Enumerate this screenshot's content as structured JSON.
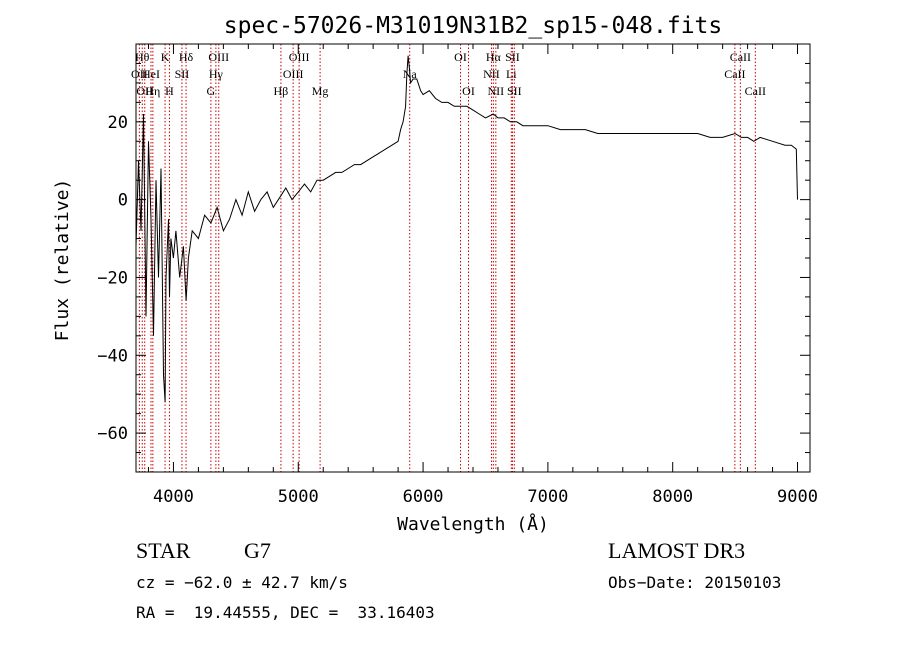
{
  "chart_data": {
    "type": "line",
    "title": "spec-57026-M31019N31B2_sp15-048.fits",
    "xlabel": "Wavelength (Å)",
    "ylabel": "Flux (relative)",
    "xlim": [
      3700,
      9100
    ],
    "ylim": [
      -70,
      40
    ],
    "xticks": [
      4000,
      5000,
      6000,
      7000,
      8000,
      9000
    ],
    "xtick_labels": [
      "4000",
      "5000",
      "6000",
      "7000",
      "8000",
      "9000"
    ],
    "yticks": [
      -60,
      -40,
      -20,
      0,
      20
    ],
    "ytick_labels": [
      "−60",
      "−40",
      "−20",
      "0",
      "20"
    ],
    "grid": false,
    "series": [
      {
        "name": "flux",
        "x": [
          3700,
          3720,
          3740,
          3760,
          3780,
          3800,
          3820,
          3840,
          3860,
          3880,
          3900,
          3920,
          3933,
          3940,
          3960,
          3968,
          3980,
          4000,
          4020,
          4050,
          4080,
          4101,
          4120,
          4150,
          4200,
          4250,
          4300,
          4350,
          4400,
          4450,
          4500,
          4550,
          4600,
          4650,
          4700,
          4750,
          4800,
          4861,
          4900,
          4950,
          5000,
          5050,
          5100,
          5150,
          5200,
          5250,
          5300,
          5350,
          5400,
          5450,
          5500,
          5550,
          5600,
          5650,
          5700,
          5750,
          5800,
          5820,
          5840,
          5860,
          5870,
          5880,
          5890,
          5900,
          5920,
          5950,
          5980,
          6000,
          6050,
          6100,
          6150,
          6200,
          6250,
          6300,
          6350,
          6400,
          6450,
          6500,
          6563,
          6600,
          6650,
          6700,
          6750,
          6800,
          6900,
          7000,
          7100,
          7200,
          7300,
          7400,
          7500,
          7600,
          7700,
          7800,
          7900,
          8000,
          8100,
          8200,
          8300,
          8400,
          8500,
          8550,
          8600,
          8650,
          8700,
          8800,
          8900,
          8950,
          8990,
          9000
        ],
        "values": [
          -12,
          10,
          -8,
          22,
          -30,
          15,
          -5,
          -35,
          5,
          -20,
          8,
          -45,
          -52,
          -20,
          -5,
          -25,
          -10,
          -15,
          -8,
          -20,
          -12,
          -26,
          -15,
          -8,
          -10,
          -4,
          -6,
          -2,
          -8,
          -5,
          0,
          -4,
          2,
          -3,
          0,
          2,
          -2,
          1,
          3,
          0,
          2,
          4,
          2,
          5,
          5,
          6,
          7,
          7,
          8,
          9,
          9,
          10,
          11,
          12,
          13,
          14,
          15,
          18,
          20,
          24,
          32,
          37,
          34,
          30,
          31,
          31,
          28,
          27,
          28,
          26,
          25,
          25,
          24,
          24,
          24,
          23,
          22,
          21,
          22,
          21,
          21,
          20,
          20,
          19,
          19,
          19,
          18,
          18,
          18,
          17,
          17,
          17,
          17,
          17,
          17,
          17,
          17,
          17,
          16,
          16,
          17,
          16,
          16,
          15,
          16,
          15,
          14,
          14,
          13,
          0
        ]
      }
    ],
    "lines": [
      {
        "x": 3727,
        "row": 1,
        "label": "OII"
      },
      {
        "x": 3750,
        "row": 0,
        "label": "Hθ"
      },
      {
        "x": 3770,
        "row": 2,
        "label": "OII"
      },
      {
        "x": 3820,
        "row": 1,
        "label": "HeI"
      },
      {
        "x": 3835,
        "row": 2,
        "label": "Hη"
      },
      {
        "x": 3933,
        "row": 0,
        "label": "K"
      },
      {
        "x": 3968,
        "row": 2,
        "label": "H"
      },
      {
        "x": 4068,
        "row": 1,
        "label": "SII"
      },
      {
        "x": 4101,
        "row": 0,
        "label": "Hδ"
      },
      {
        "x": 4300,
        "row": 2,
        "label": "G"
      },
      {
        "x": 4340,
        "row": 1,
        "label": "Hγ"
      },
      {
        "x": 4363,
        "row": 0,
        "label": "OIII"
      },
      {
        "x": 4861,
        "row": 2,
        "label": "Hβ"
      },
      {
        "x": 4959,
        "row": 1,
        "label": "OIII"
      },
      {
        "x": 5007,
        "row": 0,
        "label": "OIII"
      },
      {
        "x": 5175,
        "row": 2,
        "label": "Mg"
      },
      {
        "x": 5893,
        "row": 1,
        "label": "Na"
      },
      {
        "x": 6300,
        "row": 0,
        "label": "OI"
      },
      {
        "x": 6364,
        "row": 2,
        "label": "OI"
      },
      {
        "x": 6548,
        "row": 1,
        "label": "NII"
      },
      {
        "x": 6563,
        "row": 0,
        "label": "Hα"
      },
      {
        "x": 6583,
        "row": 2,
        "label": "NII"
      },
      {
        "x": 6707,
        "row": 1,
        "label": "Li"
      },
      {
        "x": 6716,
        "row": 0,
        "label": "SII"
      },
      {
        "x": 6731,
        "row": 2,
        "label": "SII"
      },
      {
        "x": 8498,
        "row": 1,
        "label": "CaII"
      },
      {
        "x": 8542,
        "row": 0,
        "label": "CaII"
      },
      {
        "x": 8662,
        "row": 2,
        "label": "CaII"
      }
    ]
  },
  "info": {
    "object_class": "STAR",
    "subclass": "G7",
    "survey": "LAMOST DR3",
    "cz": "cz = −62.0 ± 42.7 km/s",
    "obs_date": "Obs−Date: 20150103",
    "coords": "RA =  19.44555, DEC =  33.16403"
  },
  "colors": {
    "line": "#000000",
    "marker": "#cc0000"
  }
}
